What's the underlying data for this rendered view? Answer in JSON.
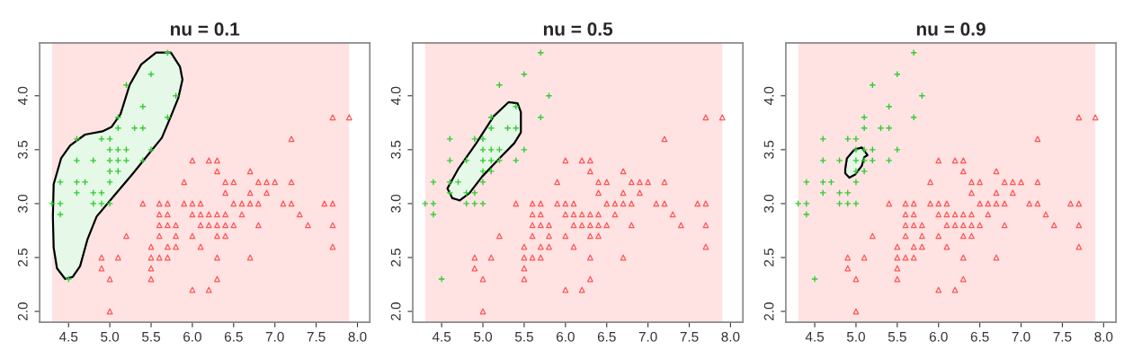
{
  "chart_data": [
    {
      "type": "scatter",
      "title": "nu = 0.1",
      "xlim": [
        4.15,
        8.15
      ],
      "ylim": [
        1.9,
        4.49
      ],
      "xticks": [
        {
          "value": 4.5,
          "label": "4.5"
        },
        {
          "value": 5,
          "label": "5.0"
        },
        {
          "value": 5.5,
          "label": "5.5"
        },
        {
          "value": 6,
          "label": "6.0"
        },
        {
          "value": 6.5,
          "label": "6.5"
        },
        {
          "value": 7,
          "label": "7.0"
        },
        {
          "value": 7.5,
          "label": "7.5"
        },
        {
          "value": 8,
          "label": "8.0"
        }
      ],
      "yticks": [
        {
          "value": 2,
          "label": "2.0"
        },
        {
          "value": 2.5,
          "label": "2.5"
        },
        {
          "value": 3,
          "label": "3.0"
        },
        {
          "value": 3.5,
          "label": "3.5"
        },
        {
          "value": 4,
          "label": "4.0"
        }
      ],
      "bands": [
        {
          "axis": "x",
          "from": 4.3,
          "to": 7.9,
          "color": "#ffe3e3"
        }
      ],
      "series": [
        {
          "type": "area",
          "color": "#e6f9e8",
          "x": [
            4.31,
            4.32,
            4.41,
            4.52,
            4.7,
            4.91,
            5.02,
            5.13,
            5.24,
            5.38,
            5.56,
            5.74,
            5.85,
            5.88,
            5.83,
            5.74,
            5.63,
            5.45,
            5.27,
            5.06,
            4.84,
            4.73,
            4.64,
            4.55,
            4.46,
            4.36,
            4.32
          ],
          "values": [
            2.88,
            3.18,
            3.42,
            3.54,
            3.64,
            3.67,
            3.71,
            3.83,
            4.1,
            4.29,
            4.4,
            4.4,
            4.27,
            4.15,
            3.98,
            3.81,
            3.61,
            3.44,
            3.27,
            3.08,
            2.88,
            2.67,
            2.42,
            2.32,
            2.3,
            2.4,
            2.59
          ]
        },
        {
          "type": "scatter",
          "marker": "cross",
          "color": "#33cc33",
          "x": [
            5.1,
            4.9,
            4.7,
            4.6,
            5.0,
            5.4,
            4.6,
            5.0,
            4.4,
            4.9,
            5.4,
            4.8,
            4.8,
            4.3,
            5.8,
            5.7,
            5.7,
            5.1,
            5.4,
            5.1,
            4.6,
            5.1,
            5.0,
            5.2,
            5.2,
            4.8,
            5.2,
            5.5,
            5.0,
            5.5,
            4.9,
            4.4,
            5.1,
            5.0,
            4.5,
            4.4,
            4.6,
            5.3,
            5.0
          ],
          "values": [
            3.5,
            3.0,
            3.2,
            3.1,
            3.6,
            3.9,
            3.4,
            3.4,
            2.9,
            3.1,
            3.7,
            3.4,
            3.0,
            3.0,
            4.0,
            4.4,
            3.8,
            3.8,
            3.4,
            3.7,
            3.6,
            3.3,
            3.0,
            3.5,
            3.4,
            3.1,
            4.1,
            4.2,
            3.2,
            3.5,
            3.6,
            3.0,
            3.4,
            3.5,
            2.3,
            3.2,
            3.2,
            3.7,
            3.3
          ]
        },
        {
          "type": "scatter",
          "marker": "triangle",
          "color": "#ff5555",
          "x": [
            7.0,
            6.4,
            6.9,
            5.5,
            6.5,
            5.7,
            6.3,
            4.9,
            6.6,
            5.2,
            5.0,
            5.9,
            6.0,
            6.1,
            5.6,
            6.7,
            5.6,
            5.8,
            6.2,
            5.6,
            5.9,
            6.1,
            6.3,
            6.4,
            6.6,
            6.8,
            6.7,
            6.0,
            5.7,
            5.5,
            6.0,
            5.4,
            6.0,
            6.3,
            5.5,
            5.5,
            6.1,
            5.8,
            5.0,
            5.6,
            5.7,
            5.7,
            6.2,
            5.1,
            7.1,
            6.3,
            6.5,
            7.6,
            4.9,
            7.3,
            6.7,
            7.2,
            6.5,
            6.4,
            6.8,
            5.7,
            5.8,
            7.7,
            7.7,
            6.9,
            5.6,
            7.7,
            6.3,
            6.7,
            7.2,
            6.2,
            6.4,
            7.2,
            7.4,
            7.9,
            6.3,
            6.1,
            7.7,
            6.3,
            6.4,
            6.0,
            6.8,
            6.2
          ],
          "values": [
            3.2,
            3.2,
            3.1,
            2.3,
            2.8,
            2.8,
            3.3,
            2.4,
            2.9,
            2.7,
            2.0,
            3.0,
            2.2,
            2.9,
            2.9,
            3.1,
            3.0,
            2.7,
            2.2,
            2.5,
            3.2,
            2.8,
            2.5,
            2.9,
            3.0,
            2.8,
            3.0,
            2.9,
            2.6,
            2.4,
            2.7,
            3.0,
            3.4,
            2.3,
            2.5,
            2.6,
            3.0,
            2.6,
            2.3,
            2.7,
            3.0,
            2.9,
            2.9,
            2.5,
            3.0,
            2.9,
            3.0,
            3.0,
            2.5,
            2.9,
            2.5,
            3.6,
            3.2,
            2.7,
            3.0,
            2.5,
            2.8,
            3.8,
            2.6,
            3.2,
            2.8,
            2.8,
            2.7,
            3.3,
            3.2,
            2.8,
            2.8,
            3.0,
            2.8,
            3.8,
            2.8,
            2.6,
            3.0,
            3.4,
            3.1,
            3.0,
            3.2,
            3.4
          ]
        }
      ]
    },
    {
      "type": "scatter",
      "title": "nu = 0.5",
      "xlim": [
        4.15,
        8.15
      ],
      "ylim": [
        1.9,
        4.49
      ],
      "xticks": [
        {
          "value": 4.5,
          "label": "4.5"
        },
        {
          "value": 5,
          "label": "5.0"
        },
        {
          "value": 5.5,
          "label": "5.5"
        },
        {
          "value": 6,
          "label": "6.0"
        },
        {
          "value": 6.5,
          "label": "6.5"
        },
        {
          "value": 7,
          "label": "7.0"
        },
        {
          "value": 7.5,
          "label": "7.5"
        },
        {
          "value": 8,
          "label": "8.0"
        }
      ],
      "yticks": [
        {
          "value": 2,
          "label": "2.0"
        },
        {
          "value": 2.5,
          "label": "2.5"
        },
        {
          "value": 3,
          "label": "3.0"
        },
        {
          "value": 3.5,
          "label": "3.5"
        },
        {
          "value": 4,
          "label": "4.0"
        }
      ],
      "bands": [
        {
          "axis": "x",
          "from": 4.3,
          "to": 7.9,
          "color": "#ffe3e3"
        }
      ],
      "series": [
        {
          "type": "area",
          "color": "#e6f9e8",
          "x": [
            4.57,
            4.7,
            4.92,
            5.13,
            5.31,
            5.42,
            5.46,
            5.46,
            5.38,
            5.2,
            4.99,
            4.84,
            4.72,
            4.63
          ],
          "values": [
            3.14,
            3.32,
            3.56,
            3.81,
            3.94,
            3.93,
            3.85,
            3.66,
            3.56,
            3.42,
            3.25,
            3.1,
            3.03,
            3.05
          ]
        },
        {
          "type": "scatter",
          "marker": "cross",
          "color": "#33cc33",
          "x": [
            5.1,
            4.9,
            4.7,
            4.6,
            5.0,
            5.4,
            4.6,
            5.0,
            4.4,
            4.9,
            5.4,
            4.8,
            4.8,
            4.3,
            5.8,
            5.7,
            5.7,
            5.1,
            5.4,
            5.1,
            4.6,
            5.1,
            5.0,
            5.2,
            5.2,
            4.8,
            5.2,
            5.5,
            5.0,
            5.5,
            4.9,
            4.4,
            5.1,
            5.0,
            4.5,
            4.4,
            4.6,
            5.3,
            5.0
          ],
          "values": [
            3.5,
            3.0,
            3.2,
            3.1,
            3.6,
            3.9,
            3.4,
            3.4,
            2.9,
            3.1,
            3.7,
            3.4,
            3.0,
            3.0,
            4.0,
            4.4,
            3.8,
            3.8,
            3.4,
            3.7,
            3.6,
            3.3,
            3.0,
            3.5,
            3.4,
            3.1,
            4.1,
            4.2,
            3.2,
            3.5,
            3.6,
            3.0,
            3.4,
            3.5,
            2.3,
            3.2,
            3.2,
            3.7,
            3.3
          ]
        },
        {
          "type": "scatter",
          "marker": "triangle",
          "color": "#ff5555",
          "x": [
            7.0,
            6.4,
            6.9,
            5.5,
            6.5,
            5.7,
            6.3,
            4.9,
            6.6,
            5.2,
            5.0,
            5.9,
            6.0,
            6.1,
            5.6,
            6.7,
            5.6,
            5.8,
            6.2,
            5.6,
            5.9,
            6.1,
            6.3,
            6.4,
            6.6,
            6.8,
            6.7,
            6.0,
            5.7,
            5.5,
            6.0,
            5.4,
            6.0,
            6.3,
            5.5,
            5.5,
            6.1,
            5.8,
            5.0,
            5.6,
            5.7,
            5.7,
            6.2,
            5.1,
            7.1,
            6.3,
            6.5,
            7.6,
            4.9,
            7.3,
            6.7,
            7.2,
            6.5,
            6.4,
            6.8,
            5.7,
            5.8,
            7.7,
            7.7,
            6.9,
            5.6,
            7.7,
            6.3,
            6.7,
            7.2,
            6.2,
            6.4,
            7.2,
            7.4,
            7.9,
            6.3,
            6.1,
            7.7,
            6.3,
            6.4,
            6.0,
            6.8,
            6.2
          ],
          "values": [
            3.2,
            3.2,
            3.1,
            2.3,
            2.8,
            2.8,
            3.3,
            2.4,
            2.9,
            2.7,
            2.0,
            3.0,
            2.2,
            2.9,
            2.9,
            3.1,
            3.0,
            2.7,
            2.2,
            2.5,
            3.2,
            2.8,
            2.5,
            2.9,
            3.0,
            2.8,
            3.0,
            2.9,
            2.6,
            2.4,
            2.7,
            3.0,
            3.4,
            2.3,
            2.5,
            2.6,
            3.0,
            2.6,
            2.3,
            2.7,
            3.0,
            2.9,
            2.9,
            2.5,
            3.0,
            2.9,
            3.0,
            3.0,
            2.5,
            2.9,
            2.5,
            3.6,
            3.2,
            2.7,
            3.0,
            2.5,
            2.8,
            3.8,
            2.6,
            3.2,
            2.8,
            2.8,
            2.7,
            3.3,
            3.2,
            2.8,
            2.8,
            3.0,
            2.8,
            3.8,
            2.8,
            2.6,
            3.0,
            3.4,
            3.1,
            3.0,
            3.2,
            3.4
          ]
        }
      ]
    },
    {
      "type": "scatter",
      "title": "nu = 0.9",
      "xlim": [
        4.15,
        8.15
      ],
      "ylim": [
        1.9,
        4.49
      ],
      "xticks": [
        {
          "value": 4.5,
          "label": "4.5"
        },
        {
          "value": 5,
          "label": "5.0"
        },
        {
          "value": 5.5,
          "label": "5.5"
        },
        {
          "value": 6,
          "label": "6.0"
        },
        {
          "value": 6.5,
          "label": "6.5"
        },
        {
          "value": 7,
          "label": "7.0"
        },
        {
          "value": 7.5,
          "label": "7.5"
        },
        {
          "value": 8,
          "label": "8.0"
        }
      ],
      "yticks": [
        {
          "value": 2,
          "label": "2.0"
        },
        {
          "value": 2.5,
          "label": "2.5"
        },
        {
          "value": 3,
          "label": "3.0"
        },
        {
          "value": 3.5,
          "label": "3.5"
        },
        {
          "value": 4,
          "label": "4.0"
        }
      ],
      "bands": [
        {
          "axis": "x",
          "from": 4.3,
          "to": 7.9,
          "color": "#ffe3e3"
        }
      ],
      "series": [
        {
          "type": "area",
          "color": "#e6f9e8",
          "x": [
            4.87,
            4.89,
            4.98,
            5.07,
            5.14,
            5.1,
            5.07,
            4.99,
            4.92,
            4.87
          ],
          "values": [
            3.32,
            3.42,
            3.5,
            3.52,
            3.45,
            3.43,
            3.35,
            3.27,
            3.24,
            3.28
          ]
        },
        {
          "type": "scatter",
          "marker": "cross",
          "color": "#33cc33",
          "x": [
            5.1,
            4.9,
            4.7,
            4.6,
            5.0,
            5.4,
            4.6,
            5.0,
            4.4,
            4.9,
            5.4,
            4.8,
            4.8,
            4.3,
            5.8,
            5.7,
            5.7,
            5.1,
            5.4,
            5.1,
            4.6,
            5.1,
            5.0,
            5.2,
            5.2,
            4.8,
            5.2,
            5.5,
            5.0,
            5.5,
            4.9,
            4.4,
            5.1,
            5.0,
            4.5,
            4.4,
            4.6,
            5.3,
            5.0
          ],
          "values": [
            3.5,
            3.0,
            3.2,
            3.1,
            3.6,
            3.9,
            3.4,
            3.4,
            2.9,
            3.1,
            3.7,
            3.4,
            3.0,
            3.0,
            4.0,
            4.4,
            3.8,
            3.8,
            3.4,
            3.7,
            3.6,
            3.3,
            3.0,
            3.5,
            3.4,
            3.1,
            4.1,
            4.2,
            3.2,
            3.5,
            3.6,
            3.0,
            3.4,
            3.5,
            2.3,
            3.2,
            3.2,
            3.7,
            3.3
          ]
        },
        {
          "type": "scatter",
          "marker": "triangle",
          "color": "#ff5555",
          "x": [
            7.0,
            6.4,
            6.9,
            5.5,
            6.5,
            5.7,
            6.3,
            4.9,
            6.6,
            5.2,
            5.0,
            5.9,
            6.0,
            6.1,
            5.6,
            6.7,
            5.6,
            5.8,
            6.2,
            5.6,
            5.9,
            6.1,
            6.3,
            6.4,
            6.6,
            6.8,
            6.7,
            6.0,
            5.7,
            5.5,
            6.0,
            5.4,
            6.0,
            6.3,
            5.5,
            5.5,
            6.1,
            5.8,
            5.0,
            5.6,
            5.7,
            5.7,
            6.2,
            5.1,
            7.1,
            6.3,
            6.5,
            7.6,
            4.9,
            7.3,
            6.7,
            7.2,
            6.5,
            6.4,
            6.8,
            5.7,
            5.8,
            7.7,
            7.7,
            6.9,
            5.6,
            7.7,
            6.3,
            6.7,
            7.2,
            6.2,
            6.4,
            7.2,
            7.4,
            7.9,
            6.3,
            6.1,
            7.7,
            6.3,
            6.4,
            6.0,
            6.8,
            6.2
          ],
          "values": [
            3.2,
            3.2,
            3.1,
            2.3,
            2.8,
            2.8,
            3.3,
            2.4,
            2.9,
            2.7,
            2.0,
            3.0,
            2.2,
            2.9,
            2.9,
            3.1,
            3.0,
            2.7,
            2.2,
            2.5,
            3.2,
            2.8,
            2.5,
            2.9,
            3.0,
            2.8,
            3.0,
            2.9,
            2.6,
            2.4,
            2.7,
            3.0,
            3.4,
            2.3,
            2.5,
            2.6,
            3.0,
            2.6,
            2.3,
            2.7,
            3.0,
            2.9,
            2.9,
            2.5,
            3.0,
            2.9,
            3.0,
            3.0,
            2.5,
            2.9,
            2.5,
            3.6,
            3.2,
            2.7,
            3.0,
            2.5,
            2.8,
            3.8,
            2.6,
            3.2,
            2.8,
            2.8,
            2.7,
            3.3,
            3.2,
            2.8,
            2.8,
            3.0,
            2.8,
            3.8,
            2.8,
            2.6,
            3.0,
            3.4,
            3.1,
            3.0,
            3.2,
            3.4
          ]
        }
      ]
    }
  ]
}
